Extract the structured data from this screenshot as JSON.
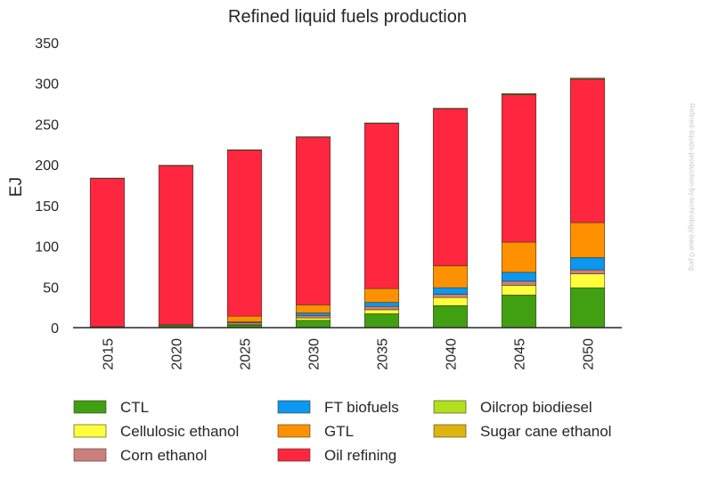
{
  "chart_data": {
    "type": "bar",
    "stacked": true,
    "title": "Refined liquid fuels production",
    "xlabel": "",
    "ylabel": "EJ",
    "ylim": [
      0,
      350
    ],
    "yticks": [
      0,
      50,
      100,
      150,
      200,
      250,
      300,
      350
    ],
    "grid": false,
    "legend_position": "bottom",
    "categories": [
      "2015",
      "2020",
      "2025",
      "2030",
      "2035",
      "2040",
      "2045",
      "2050"
    ],
    "series": [
      {
        "name": "CTL",
        "color": "#41a012",
        "values": [
          0.5,
          2,
          3,
          9,
          17,
          27,
          40,
          49
        ]
      },
      {
        "name": "Cellulosic ethanol",
        "color": "#ffff3c",
        "values": [
          0,
          0,
          1,
          3,
          5,
          10,
          12,
          17
        ]
      },
      {
        "name": "Corn ethanol",
        "color": "#cd7f7f",
        "values": [
          0.5,
          1,
          2,
          3,
          4,
          4,
          5,
          5
        ]
      },
      {
        "name": "FT biofuels",
        "color": "#0c97f0",
        "values": [
          0,
          0,
          1,
          3,
          5,
          8,
          11,
          15
        ]
      },
      {
        "name": "GTL",
        "color": "#ff9100",
        "values": [
          0.2,
          1,
          7,
          10,
          17,
          27,
          37,
          43
        ]
      },
      {
        "name": "Oil refining",
        "color": "#ff2640",
        "values": [
          182,
          195,
          204,
          206,
          203,
          193,
          181,
          176
        ]
      },
      {
        "name": "Oilcrop biodiesel",
        "color": "#b2e01d",
        "values": [
          0.5,
          0.5,
          0.5,
          0.5,
          0.5,
          0.5,
          1,
          1
        ]
      },
      {
        "name": "Sugar cane ethanol",
        "color": "#e0b40f",
        "values": [
          0,
          0,
          0,
          0,
          0,
          0,
          0.5,
          0.5
        ]
      }
    ],
    "segment_edge_color": "#3c3c1e"
  },
  "watermark": "Refined-liquids-production-by-technology-base-0.png"
}
